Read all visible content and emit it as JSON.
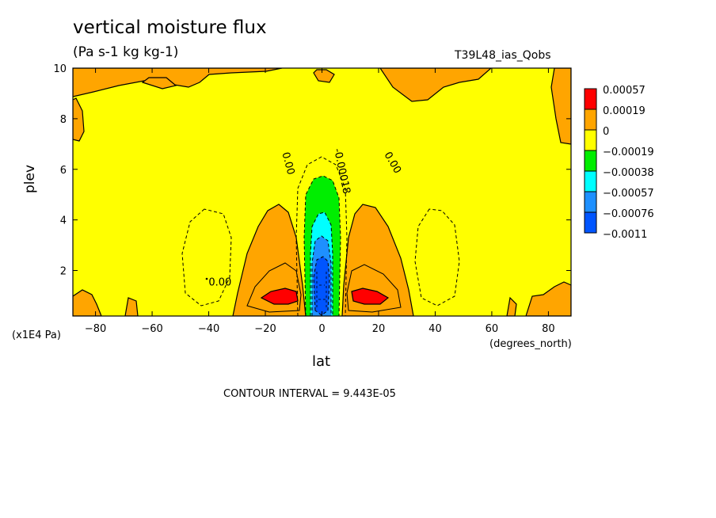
{
  "chart_data": {
    "type": "contour",
    "title": "vertical moisture flux",
    "subtitle": "(Pa s-1 kg kg-1)",
    "run_label": "T39L48_ias_Qobs",
    "xlabel": "lat",
    "xunits": "(degrees_north)",
    "ylabel": "plev",
    "yunits": "(x1E4 Pa)",
    "xlim": [
      -88,
      88
    ],
    "ylim": [
      10,
      0.2
    ],
    "xticks": [
      -80,
      -60,
      -40,
      -20,
      0,
      20,
      40,
      60,
      80
    ],
    "yticks": [
      2,
      4,
      6,
      8,
      10
    ],
    "contour_interval": "CONTOUR INTERVAL = 9.443E-05",
    "contour_labels": [
      {
        "text": "0.00",
        "lat": -36,
        "plev": 1.4
      },
      {
        "text": "0.00",
        "lat": -13,
        "plev": 6.2
      },
      {
        "text": "0.00",
        "lat": 24,
        "plev": 6.2
      },
      {
        "text": "-0.00018",
        "lat": 6,
        "plev": 5.9
      }
    ],
    "legend": {
      "placement": "right",
      "levels": [
        {
          "label": "0.00057",
          "color": "#ff0000"
        },
        {
          "label": "0.00019",
          "color": "#ffa500"
        },
        {
          "label": "0",
          "color": "#ffff00"
        },
        {
          "label": "-0.00019",
          "color": "#00ee00"
        },
        {
          "label": "-0.00038",
          "color": "#00ffff"
        },
        {
          "label": "-0.00057",
          "color": "#1e90ff"
        },
        {
          "label": "-0.00076",
          "color": "#0055ff"
        },
        {
          "label": "-0.0011",
          "color": ""
        }
      ]
    },
    "colors": {
      "background_field": "#ffff00",
      "positive_low": "#ffa500",
      "positive_high": "#ff0000",
      "negative_1": "#00ee00",
      "negative_2": "#00ffff",
      "negative_3": "#1e90ff",
      "negative_4": "#0055ff"
    }
  }
}
